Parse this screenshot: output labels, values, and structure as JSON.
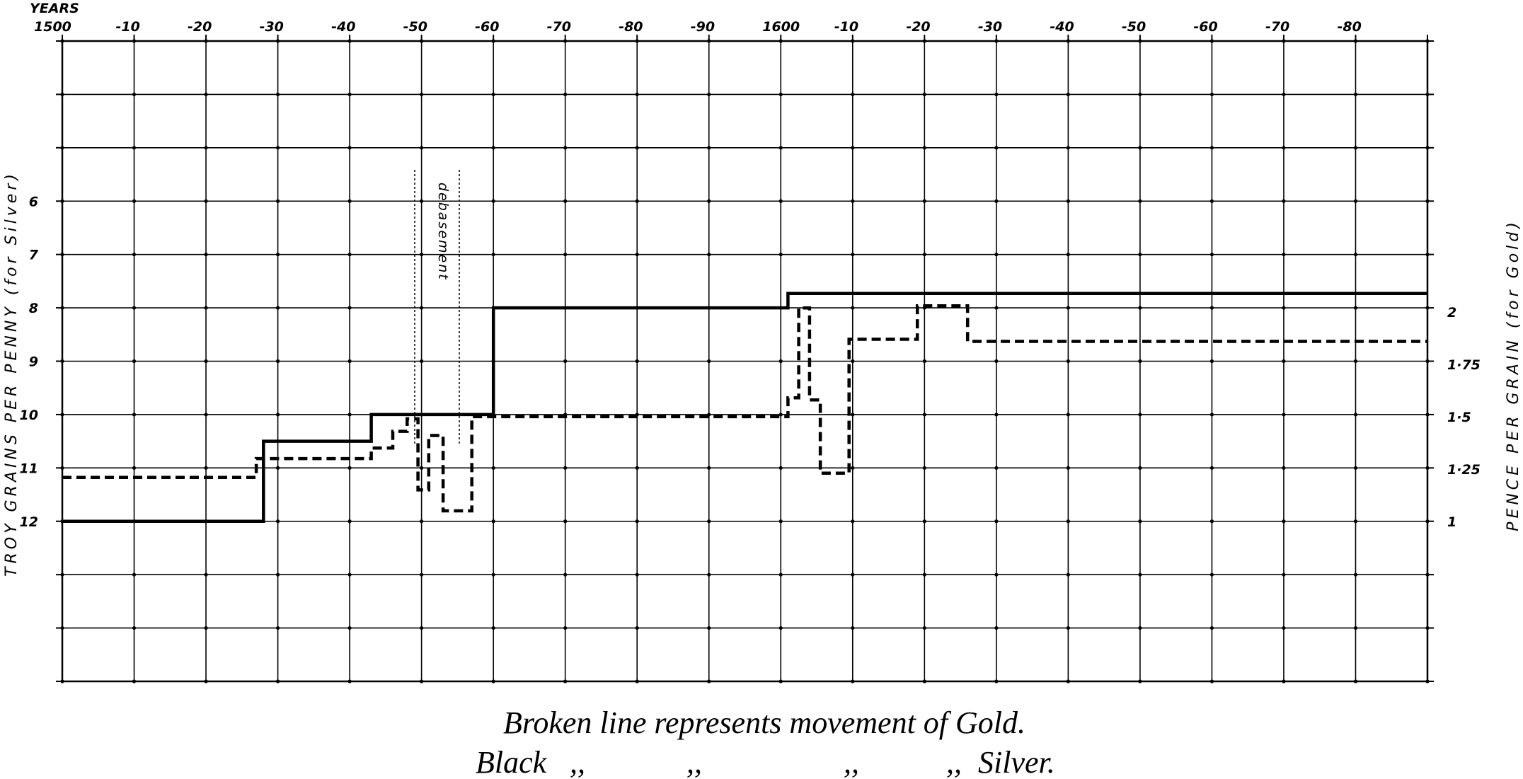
{
  "chart_data": {
    "type": "line",
    "step": true,
    "top_axis_title": "YEARS",
    "x_tick_labels": [
      "1500",
      "-10",
      "-20",
      "-30",
      "-40",
      "-50",
      "-60",
      "-70",
      "-80",
      "-90",
      "1600",
      "-10",
      "-20",
      "-30",
      "-40",
      "-50",
      "-60",
      "-70",
      "-80"
    ],
    "xlim": [
      1500,
      1690
    ],
    "ylabel_left": "TROY GRAINS PER PENNY (for Silver)",
    "ylabel_right": "PENCE PER GRAIN (for Gold)",
    "y_left_tick_labels": [
      "6",
      "7",
      "8",
      "9",
      "10",
      "11",
      "12"
    ],
    "y_left_ticks": [
      6,
      7,
      8,
      9,
      10,
      11,
      12
    ],
    "ylim_left": [
      3,
      15
    ],
    "y_right_tick_labels": [
      "2",
      "1·75",
      "1·5",
      "1·25",
      "1"
    ],
    "y_right_ticks": [
      2,
      1.75,
      1.5,
      1.25,
      1
    ],
    "grid": true,
    "annotation": "debasement",
    "series": [
      {
        "style": "solid",
        "unit": "grains per penny",
        "points": [
          [
            1500,
            12
          ],
          [
            1528,
            12
          ],
          [
            1528,
            10.5
          ],
          [
            1543,
            10.5
          ],
          [
            1543,
            10
          ],
          [
            1553,
            10
          ],
          [
            1553,
            10
          ],
          [
            1560,
            10
          ],
          [
            1560,
            8
          ],
          [
            1601,
            8
          ],
          [
            1601,
            7.73
          ],
          [
            1690,
            7.73
          ]
        ]
      },
      {
        "style": "dashed",
        "unit": "pence per grain",
        "points": [
          [
            1500,
            1.21
          ],
          [
            1527,
            1.21
          ],
          [
            1527,
            1.3
          ],
          [
            1543,
            1.3
          ],
          [
            1543,
            1.35
          ],
          [
            1546,
            1.35
          ],
          [
            1546,
            1.43
          ],
          [
            1548,
            1.43
          ],
          [
            1548,
            1.49
          ],
          [
            1549.5,
            1.49
          ],
          [
            1549.5,
            1.15
          ],
          [
            1551,
            1.15
          ],
          [
            1551,
            1.41
          ],
          [
            1553,
            1.41
          ],
          [
            1553,
            1.05
          ],
          [
            1557,
            1.05
          ],
          [
            1557,
            1.5
          ],
          [
            1601,
            1.5
          ],
          [
            1601,
            1.59
          ],
          [
            1602.5,
            1.59
          ],
          [
            1602.5,
            2.02
          ],
          [
            1604,
            2.02
          ],
          [
            1604,
            1.58
          ],
          [
            1605.5,
            1.58
          ],
          [
            1605.5,
            1.23
          ],
          [
            1609.5,
            1.23
          ],
          [
            1609.5,
            1.87
          ],
          [
            1619,
            1.87
          ],
          [
            1619,
            2.03
          ],
          [
            1626,
            2.03
          ],
          [
            1626,
            1.86
          ],
          [
            1690,
            1.86
          ]
        ]
      }
    ]
  },
  "caption": {
    "line1": "Broken line represents movement of Gold.",
    "line2_black": "Black",
    "ditto": ",,",
    "line2_silver": "Silver."
  },
  "colors": {
    "ink": "#000000",
    "paper": "#ffffff"
  }
}
